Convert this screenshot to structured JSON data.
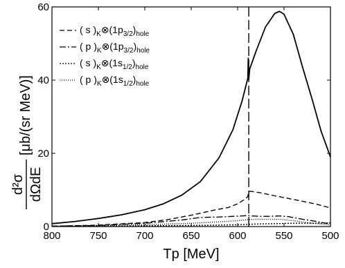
{
  "chart_data": {
    "type": "line",
    "xlabel": "Tp [MeV]",
    "ylabel": "[μb/(sr MeV)]",
    "ylabel_math": {
      "numerator": "d²σ",
      "denominator": "dΩdE"
    },
    "xlim": [
      800,
      500
    ],
    "ylim": [
      0,
      60
    ],
    "x_reversed": true,
    "xticks": [
      800,
      750,
      700,
      650,
      600,
      550,
      500
    ],
    "yticks": [
      0,
      20,
      40,
      60
    ],
    "grid": false,
    "legend_position": "top-left",
    "vertical_marker": {
      "x": 588,
      "style": "long-dash"
    },
    "legend": [
      {
        "name": "(s)K⊗(1p3/2)hole",
        "base": "( s )",
        "sub1": "K",
        "otimes": "⊗",
        "orb": "(1p",
        "orbsub": "3/2",
        "close": ")",
        "sub2": "hole",
        "dash": "short-dash"
      },
      {
        "name": "(p)K⊗(1p3/2)hole",
        "base": "( p )",
        "sub1": "K",
        "otimes": "⊗",
        "orb": "(1p",
        "orbsub": "3/2",
        "close": ")",
        "sub2": "hole",
        "dash": "dash-dot"
      },
      {
        "name": "(s)K⊗(1s1/2)hole",
        "base": "( s )",
        "sub1": "K",
        "otimes": "⊗",
        "orb": "(1s",
        "orbsub": "1/2",
        "close": ")",
        "sub2": "hole",
        "dash": "dotted"
      },
      {
        "name": "(p)K⊗(1s1/2)hole",
        "base": "( p )",
        "sub1": "K",
        "otimes": "⊗",
        "orb": "(1s",
        "orbsub": "1/2",
        "close": ")",
        "sub2": "hole",
        "dash": "fine-dotted"
      }
    ],
    "series": [
      {
        "id": "total",
        "dash": "solid",
        "x": [
          800,
          775,
          750,
          725,
          700,
          680,
          660,
          640,
          620,
          605,
          595,
          589,
          588.5,
          588,
          587,
          580,
          570,
          560,
          555,
          550,
          540,
          530,
          520,
          510,
          500
        ],
        "y": [
          0.8,
          1.4,
          2.2,
          3.2,
          4.6,
          6.2,
          8.6,
          12.3,
          18.8,
          26.5,
          34.5,
          40.5,
          46,
          40.2,
          43,
          48,
          54.5,
          58.2,
          58.8,
          58,
          52.5,
          43.5,
          35,
          26,
          19
        ]
      },
      {
        "id": "s-1p",
        "dash": "short-dash",
        "x": [
          800,
          750,
          700,
          675,
          650,
          625,
          610,
          600,
          592,
          589,
          588,
          587,
          585,
          575,
          560,
          550,
          530,
          515,
          500
        ],
        "y": [
          0.1,
          0.4,
          1.1,
          1.9,
          3.1,
          4.5,
          5.2,
          6.2,
          7.5,
          8.2,
          9.5,
          9.6,
          9.6,
          9.2,
          8.4,
          7.9,
          6.9,
          6.1,
          5.1
        ]
      },
      {
        "id": "p-1p",
        "dash": "dash-dot",
        "x": [
          800,
          750,
          700,
          660,
          640,
          620,
          605,
          595,
          589,
          588,
          585,
          575,
          565,
          555,
          545,
          530,
          515,
          505,
          500
        ],
        "y": [
          0.1,
          0.3,
          0.9,
          1.8,
          2.5,
          2.6,
          2.8,
          2.9,
          3.0,
          3.0,
          2.9,
          2.8,
          2.8,
          2.9,
          2.7,
          2.0,
          1.4,
          0.9,
          0.7
        ]
      },
      {
        "id": "s-1s",
        "dash": "dotted",
        "x": [
          800,
          750,
          700,
          650,
          620,
          600,
          589,
          580,
          560,
          540,
          520,
          500
        ],
        "y": [
          0.05,
          0.1,
          0.2,
          0.3,
          0.4,
          0.5,
          0.6,
          0.7,
          0.8,
          0.9,
          0.9,
          1.0
        ]
      },
      {
        "id": "p-1s",
        "dash": "fine-dotted",
        "x": [
          800,
          750,
          700,
          650,
          620,
          600,
          589,
          580,
          565,
          555,
          540,
          520,
          500
        ],
        "y": [
          0.05,
          0.2,
          0.5,
          0.9,
          1.3,
          1.6,
          1.9,
          2.0,
          2.0,
          2.0,
          1.6,
          0.9,
          0.5
        ]
      }
    ]
  }
}
